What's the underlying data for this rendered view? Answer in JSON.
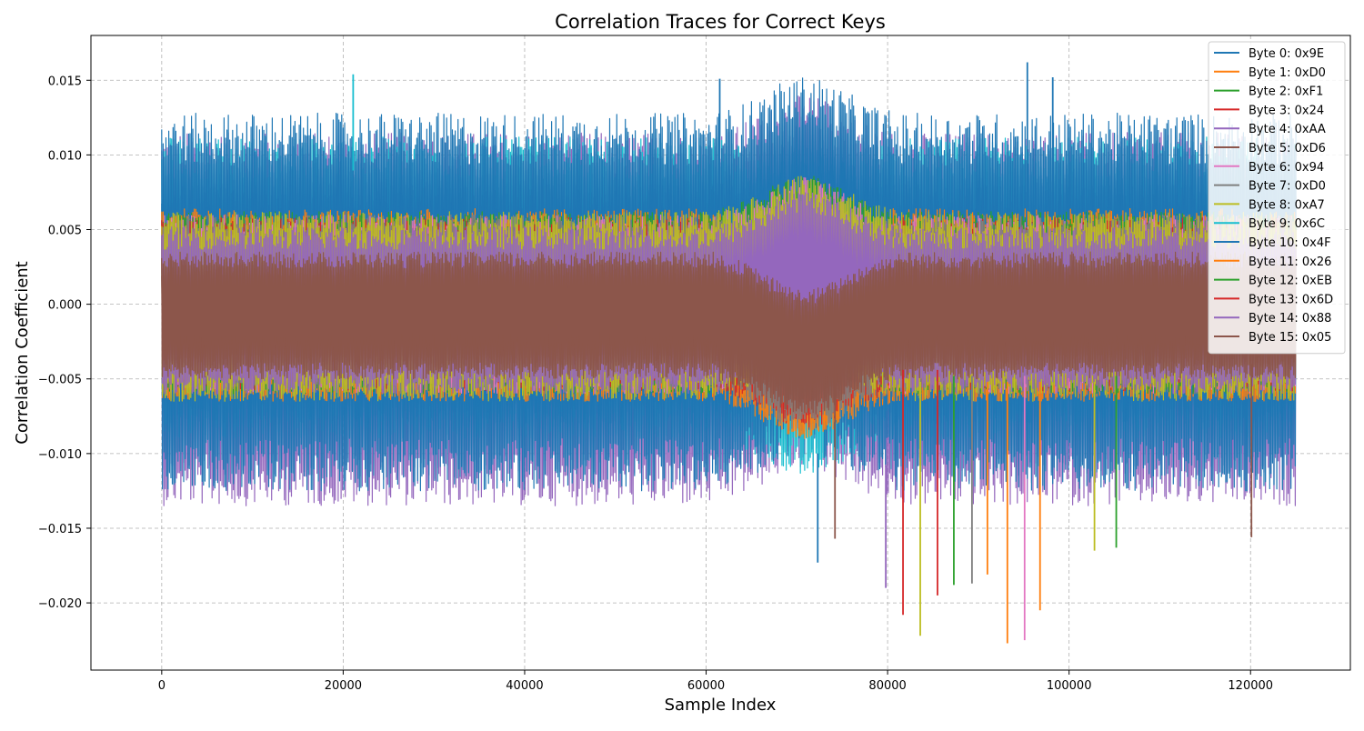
{
  "chart_data": {
    "type": "line",
    "title": "Correlation Traces for Correct Keys",
    "xlabel": "Sample Index",
    "ylabel": "Correlation Coefficient",
    "xlim": [
      -7800,
      131000
    ],
    "ylim": [
      -0.0245,
      0.018
    ],
    "x_ticks": [
      0,
      20000,
      40000,
      60000,
      80000,
      100000,
      120000
    ],
    "x_tick_labels": [
      "0",
      "20000",
      "40000",
      "60000",
      "80000",
      "100000",
      "120000"
    ],
    "y_ticks": [
      -0.02,
      -0.015,
      -0.01,
      -0.005,
      0.0,
      0.005,
      0.01,
      0.015
    ],
    "y_tick_labels": [
      "−0.020",
      "−0.015",
      "−0.010",
      "−0.005",
      "0.000",
      "0.005",
      "0.010",
      "0.015"
    ],
    "grid": true,
    "legend_position": "top-right",
    "x_range": [
      0,
      125000
    ],
    "series": [
      {
        "name": "Byte 0: 0x9E",
        "color": "#1f77b4",
        "band": [
          -0.0125,
          0.0128
        ]
      },
      {
        "name": "Byte 1: 0xD0",
        "color": "#ff7f0e",
        "band": [
          -0.0065,
          0.0064
        ]
      },
      {
        "name": "Byte 2: 0xF1",
        "color": "#2ca02c",
        "band": [
          -0.006,
          0.0062
        ]
      },
      {
        "name": "Byte 3: 0x24",
        "color": "#d62728",
        "band": [
          -0.0055,
          0.0058
        ]
      },
      {
        "name": "Byte 4: 0xAA",
        "color": "#9467bd",
        "band": [
          -0.0135,
          0.0115
        ]
      },
      {
        "name": "Byte 5: 0xD6",
        "color": "#8c564b",
        "band": [
          -0.005,
          0.003
        ]
      },
      {
        "name": "Byte 6: 0x94",
        "color": "#e377c2",
        "band": [
          -0.006,
          0.006
        ]
      },
      {
        "name": "Byte 7: 0xD0",
        "color": "#7f7f7f",
        "band": [
          -0.006,
          0.006
        ]
      },
      {
        "name": "Byte 8: 0xA7",
        "color": "#bcbd22",
        "band": [
          -0.0065,
          0.0062
        ]
      },
      {
        "name": "Byte 9: 0x6C",
        "color": "#17becf",
        "band": [
          -0.009,
          0.0112
        ]
      },
      {
        "name": "Byte 10: 0x4F",
        "color": "#1f77b4",
        "band": [
          -0.008,
          0.008
        ]
      },
      {
        "name": "Byte 11: 0x26",
        "color": "#ff7f0e",
        "band": [
          -0.0065,
          0.006
        ]
      },
      {
        "name": "Byte 12: 0xEB",
        "color": "#2ca02c",
        "band": [
          -0.006,
          0.006
        ]
      },
      {
        "name": "Byte 13: 0x6D",
        "color": "#d62728",
        "band": [
          -0.0058,
          0.0055
        ]
      },
      {
        "name": "Byte 14: 0x88",
        "color": "#9467bd",
        "band": [
          -0.006,
          0.0052
        ]
      },
      {
        "name": "Byte 15: 0x05",
        "color": "#8c564b",
        "band": [
          -0.0045,
          0.0035
        ]
      }
    ],
    "spikes": [
      {
        "series": 0,
        "x": 72300,
        "y": -0.0173
      },
      {
        "series": 1,
        "x": 93200,
        "y": -0.0227
      },
      {
        "series": 1,
        "x": 96800,
        "y": -0.0205
      },
      {
        "series": 2,
        "x": 87300,
        "y": -0.0188
      },
      {
        "series": 2,
        "x": 105200,
        "y": -0.0163
      },
      {
        "series": 3,
        "x": 81700,
        "y": -0.0208
      },
      {
        "series": 3,
        "x": 85500,
        "y": -0.0195
      },
      {
        "series": 5,
        "x": 74200,
        "y": -0.0157
      },
      {
        "series": 5,
        "x": 120100,
        "y": -0.0156
      },
      {
        "series": 6,
        "x": 95100,
        "y": -0.0225
      },
      {
        "series": 7,
        "x": 89300,
        "y": -0.0187
      },
      {
        "series": 8,
        "x": 83600,
        "y": -0.0222
      },
      {
        "series": 8,
        "x": 102800,
        "y": -0.0165
      },
      {
        "series": 9,
        "x": 21100,
        "y": 0.0154
      },
      {
        "series": 10,
        "x": 61500,
        "y": 0.0151
      },
      {
        "series": 10,
        "x": 95400,
        "y": 0.0162
      },
      {
        "series": 10,
        "x": 98200,
        "y": 0.0152
      },
      {
        "series": 11,
        "x": 91000,
        "y": -0.0181
      },
      {
        "series": 4,
        "x": 79800,
        "y": -0.019
      }
    ]
  }
}
